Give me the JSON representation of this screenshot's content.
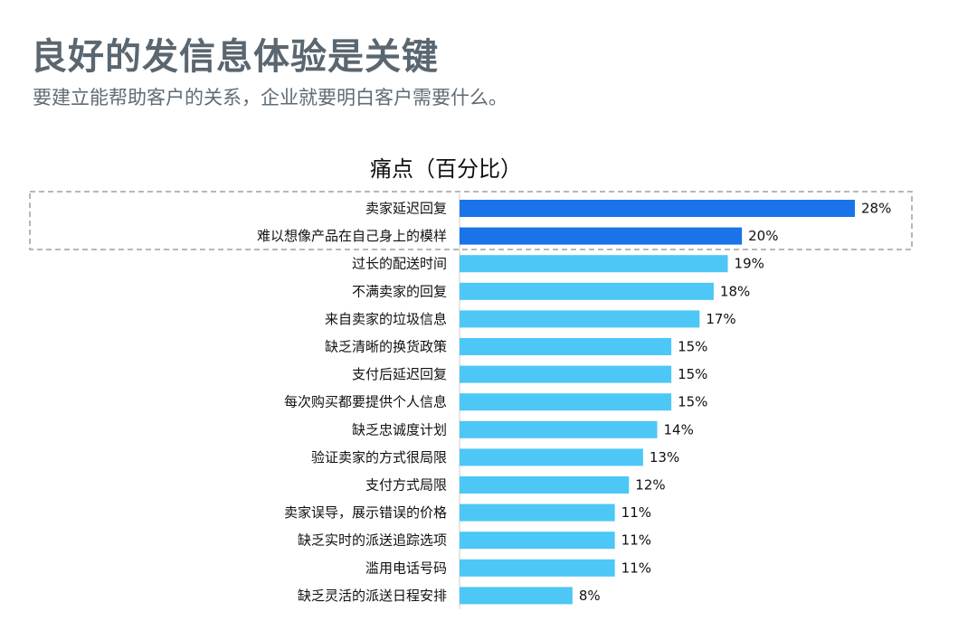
{
  "header": {
    "title": "良好的发信息体验是关键",
    "subtitle": "要建立能帮助客户的关系，企业就要明白客户需要什么。"
  },
  "colors": {
    "highlight": "#1a73e8",
    "normal": "#4cc7f6",
    "title_text": "#5a6670",
    "dashed_box": "#9aa0a6"
  },
  "chart_data": {
    "type": "bar",
    "orientation": "horizontal",
    "title": "痛点（百分比）",
    "xlabel": "",
    "ylabel": "",
    "xlim": [
      0,
      28
    ],
    "grid": false,
    "highlighted_categories": [
      "卖家延迟回复",
      "难以想像产品在自己身上的模样"
    ],
    "categories": [
      "卖家延迟回复",
      "难以想像产品在自己身上的模样",
      "过长的配送时间",
      "不满卖家的回复",
      "来自卖家的垃圾信息",
      "缺乏清晰的换货政策",
      "支付后延迟回复",
      "每次购买都要提供个人信息",
      "缺乏忠诚度计划",
      "验证卖家的方式很局限",
      "支付方式局限",
      "卖家误导，展示错误的价格",
      "缺乏实时的派送追踪选项",
      "滥用电话号码",
      "缺乏灵活的派送日程安排"
    ],
    "values": [
      28,
      20,
      19,
      18,
      17,
      15,
      15,
      15,
      14,
      13,
      12,
      11,
      11,
      11,
      8
    ],
    "value_labels": [
      "28%",
      "20%",
      "19%",
      "18%",
      "17%",
      "15%",
      "15%",
      "15%",
      "14%",
      "13%",
      "12%",
      "11%",
      "11%",
      "11%",
      "8%"
    ]
  }
}
